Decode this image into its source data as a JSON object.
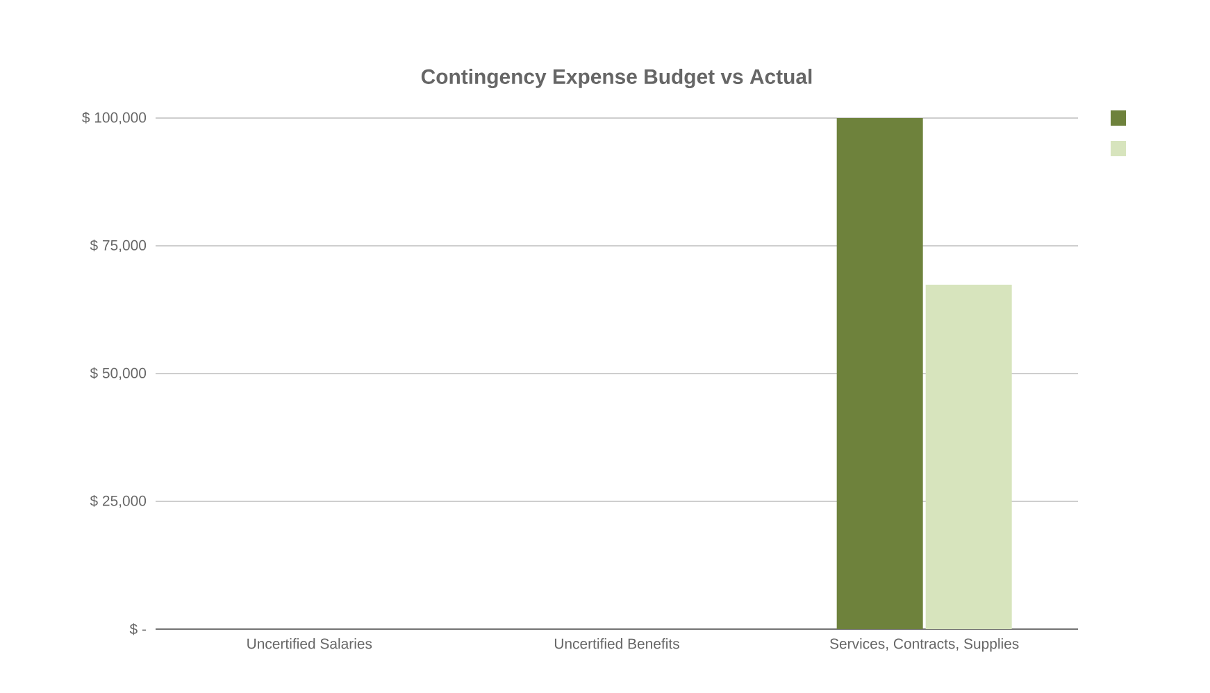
{
  "chart_data": {
    "type": "bar",
    "title": "Contingency Expense Budget vs Actual",
    "categories": [
      "Uncertified Salaries",
      "Uncertified Benefits",
      "Services, Contracts, Supplies"
    ],
    "series": [
      {
        "color": "#6e823c",
        "values": [
          0,
          0,
          100000
        ]
      },
      {
        "color": "#d7e4bd",
        "values": [
          0,
          0,
          67400
        ]
      }
    ],
    "ylim": [
      0,
      100000
    ],
    "yticks": [
      {
        "value": 0,
        "label": "$ -"
      },
      {
        "value": 25000,
        "label": "$ 25,000"
      },
      {
        "value": 50000,
        "label": "$ 50,000"
      },
      {
        "value": 75000,
        "label": "$ 75,000"
      },
      {
        "value": 100000,
        "label": "$ 100,000"
      }
    ],
    "grid": "y"
  }
}
